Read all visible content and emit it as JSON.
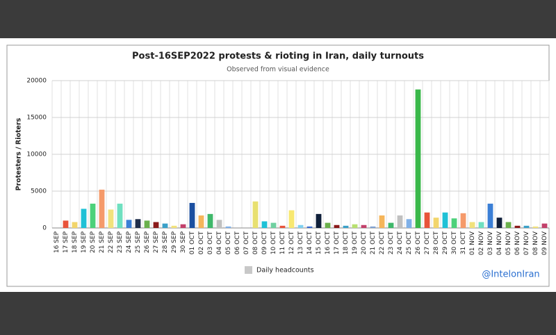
{
  "chart_data": {
    "type": "bar",
    "title": "Post-16SEP2022 protests & rioting in Iran, daily turnouts",
    "subtitle": "Observed from visual evidence",
    "y_label": "Protesters / Rioters",
    "watermark": "@IntelonIran",
    "categories": [
      "16 SEP",
      "17 SEP",
      "18 SEP",
      "19 SEP",
      "20 SEP",
      "21 SEP",
      "22 SEP",
      "23 SEP",
      "24 SEP",
      "25 SEP",
      "26 SEP",
      "27 SEP",
      "28 SEP",
      "29 SEP",
      "30 SEP",
      "01 OCT",
      "02 OCT",
      "03 OCT",
      "04 OCT",
      "05 OCT",
      "06 OCT",
      "07 OCT",
      "08 OCT",
      "09 OCT",
      "10 OCT",
      "11 OCT",
      "12 OCT",
      "13 OCT",
      "14 OCT",
      "15 OCT",
      "16 OCT",
      "17 OCT",
      "18 OCT",
      "19 OCT",
      "20 OCT",
      "21 OCT",
      "22 OCT",
      "23 OCT",
      "24 OCT",
      "25 OCT",
      "26 OCT",
      "27 OCT",
      "28 OCT",
      "29 OCT",
      "30 OCT",
      "31 OCT",
      "01 NOV",
      "02 NOV",
      "03 NOV",
      "04 NOV",
      "05 NOV",
      "06 NOV",
      "07 NOV",
      "08 NOV",
      "09 NOV"
    ],
    "series": [
      {
        "name": "Daily headcounts",
        "color": "#c8c8c8",
        "values": [
          0,
          1000,
          800,
          2600,
          3300,
          5200,
          2500,
          3300,
          1100,
          1200,
          1000,
          800,
          600,
          300,
          500,
          3400,
          1700,
          1900,
          1100,
          200,
          0,
          0,
          3600,
          900,
          700,
          300,
          2400,
          400,
          200,
          1900,
          700,
          400,
          300,
          500,
          400,
          200,
          1700,
          700,
          1700,
          1200,
          18800,
          2100,
          1400,
          2100,
          1300,
          2000,
          800,
          800,
          3300,
          1400,
          800,
          300,
          300,
          200,
          600
        ],
        "bar_colors": [
          "#c0c0c0",
          "#e8533a",
          "#f2d56b",
          "#1fc1d6",
          "#4cd17a",
          "#f59a6a",
          "#f1e27c",
          "#6fe0c0",
          "#3b7fd6",
          "#1f2d4a",
          "#6ab04c",
          "#8b1a1a",
          "#3aa0c8",
          "#f2e27c",
          "#c2406a",
          "#1a4fa0",
          "#f5b55a",
          "#3fb86a",
          "#c0c0c0",
          "#7fb0e8",
          "#c0c0c0",
          "#c0c0c0",
          "#e8e070",
          "#1fc1d6",
          "#6fd0a0",
          "#e8533a",
          "#f8e870",
          "#7fd0f0",
          "#3a6ad0",
          "#0f1f3a",
          "#6ab04c",
          "#8b1a1a",
          "#3aa0c8",
          "#b8e070",
          "#c2406a",
          "#7fa0d0",
          "#f5b55a",
          "#3fb86a",
          "#c0c0c0",
          "#7fb0e8",
          "#3ab84a",
          "#e8533a",
          "#f2d56b",
          "#1fc1d6",
          "#4cd17a",
          "#f59a6a",
          "#f1e27c",
          "#6fe0c0",
          "#3b7fd6",
          "#0f1f3a",
          "#6ab04c",
          "#8b1a1a",
          "#3aa0c8",
          "#f2e27c",
          "#c2406a"
        ]
      }
    ],
    "ylim": [
      0,
      20000
    ],
    "yticks": [
      0,
      5000,
      10000,
      15000,
      20000
    ],
    "grid": true
  }
}
